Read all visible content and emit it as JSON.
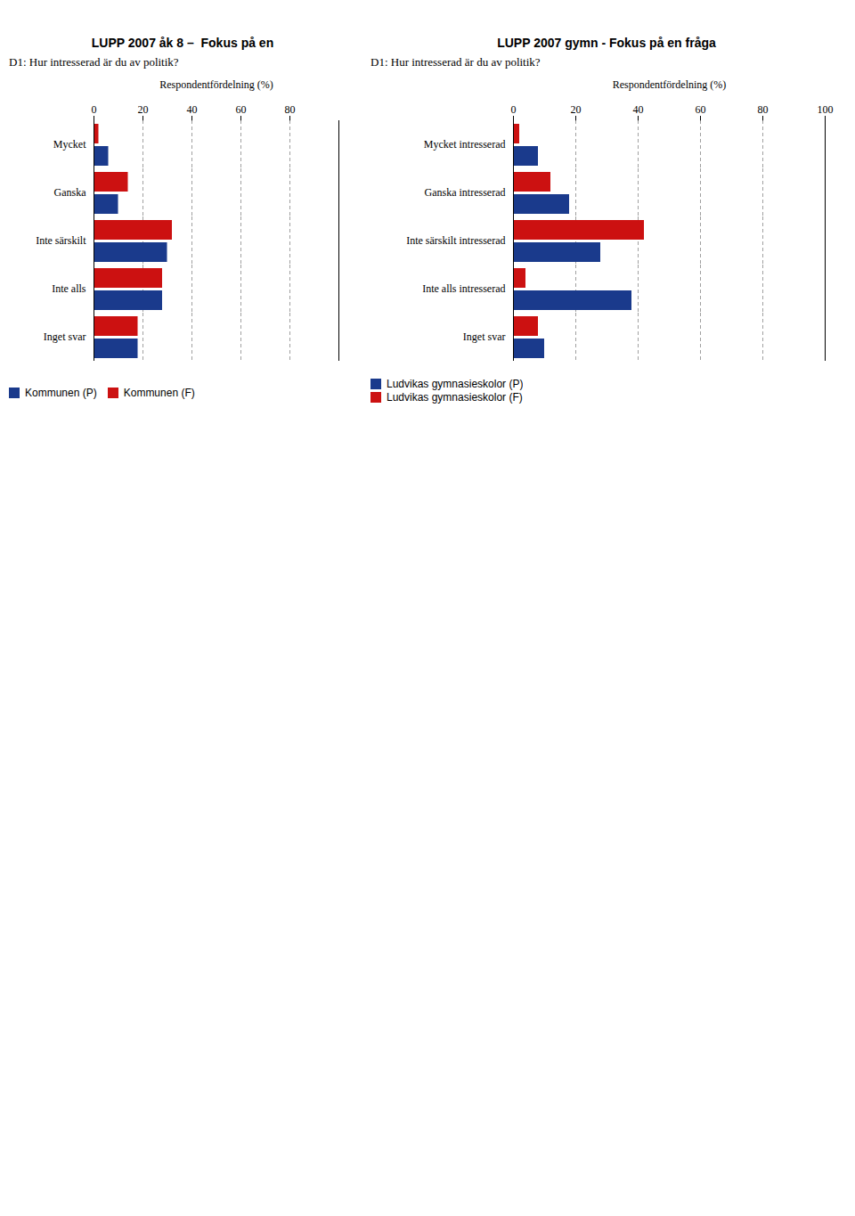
{
  "chart_data": [
    {
      "type": "bar",
      "orientation": "horizontal",
      "title": "LUPP 2007 åk 8 –  Fokus på en",
      "subtitle": "D1: Hur intresserad är du av politik?",
      "xlabel": "Respondentfördelning (%)",
      "categories": [
        "Mycket",
        "Ganska",
        "Inte särskilt",
        "Inte alls",
        "Inget svar"
      ],
      "series": [
        {
          "name": "Kommunen (P)",
          "color": "#1a3a8c",
          "values": [
            6,
            10,
            30,
            28,
            18
          ]
        },
        {
          "name": "Kommunen (F)",
          "color": "#cc1111",
          "values": [
            2,
            14,
            32,
            28,
            18
          ]
        }
      ],
      "xlim": [
        0,
        100
      ],
      "xticks": [
        0,
        20,
        40,
        60,
        80
      ],
      "grid": true,
      "legend": "bottom"
    },
    {
      "type": "bar",
      "orientation": "horizontal",
      "title": "LUPP 2007 gymn - Fokus på en fråga",
      "subtitle": "D1: Hur intresserad är du av politik?",
      "xlabel": "Respondentfördelning (%)",
      "categories": [
        "Mycket intresserad",
        "Ganska intresserad",
        "Inte särskilt intresserad",
        "Inte alls intresserad",
        "Inget svar"
      ],
      "series": [
        {
          "name": "Ludvikas gymnasieskolor (P)",
          "color": "#1a3a8c",
          "values": [
            8,
            18,
            28,
            38,
            10
          ]
        },
        {
          "name": "Ludvikas gymnasieskolor (F)",
          "color": "#cc1111",
          "values": [
            2,
            12,
            42,
            4,
            8
          ]
        }
      ],
      "xlim": [
        0,
        100
      ],
      "xticks": [
        0,
        20,
        40,
        60,
        80,
        100
      ],
      "grid": true,
      "legend": "bottom"
    }
  ]
}
